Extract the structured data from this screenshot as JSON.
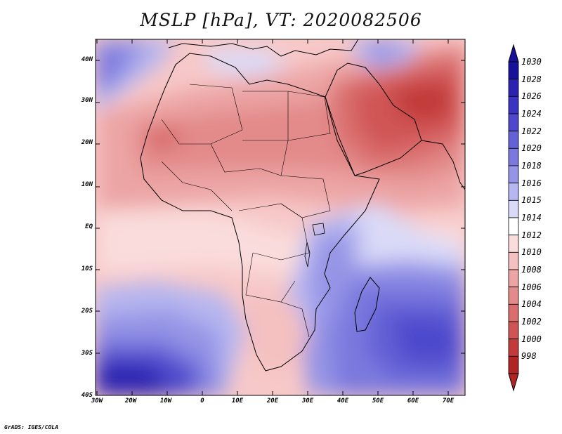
{
  "title": "MSLP [hPa], VT: 2020082506",
  "credit": "GrADS: IGES/COLA",
  "axes": {
    "lat_labels": [
      "40N",
      "30N",
      "20N",
      "10N",
      "EQ",
      "10S",
      "20S",
      "30S",
      "40S"
    ],
    "lon_labels": [
      "30W",
      "20W",
      "10W",
      "0",
      "10E",
      "20E",
      "30E",
      "40E",
      "50E",
      "60E",
      "70E"
    ]
  },
  "colorbar": {
    "levels": [
      "1030",
      "1028",
      "1026",
      "1024",
      "1022",
      "1020",
      "1018",
      "1016",
      "1015",
      "1014",
      "1012",
      "1010",
      "1008",
      "1006",
      "1004",
      "1002",
      "1000",
      "998"
    ],
    "colors": [
      "#16109a",
      "#2a22b0",
      "#3b34c2",
      "#4e49cc",
      "#6460d6",
      "#7b79de",
      "#9594e6",
      "#b6b6f0",
      "#dadaf8",
      "#ffffff",
      "#fadcdc",
      "#f4c0c0",
      "#eca4a4",
      "#e38a8a",
      "#da6e6e",
      "#d05454",
      "#c23a3a",
      "#b02424"
    ]
  },
  "colors": {
    "land_border": "#000000",
    "frame": "#000000"
  }
}
